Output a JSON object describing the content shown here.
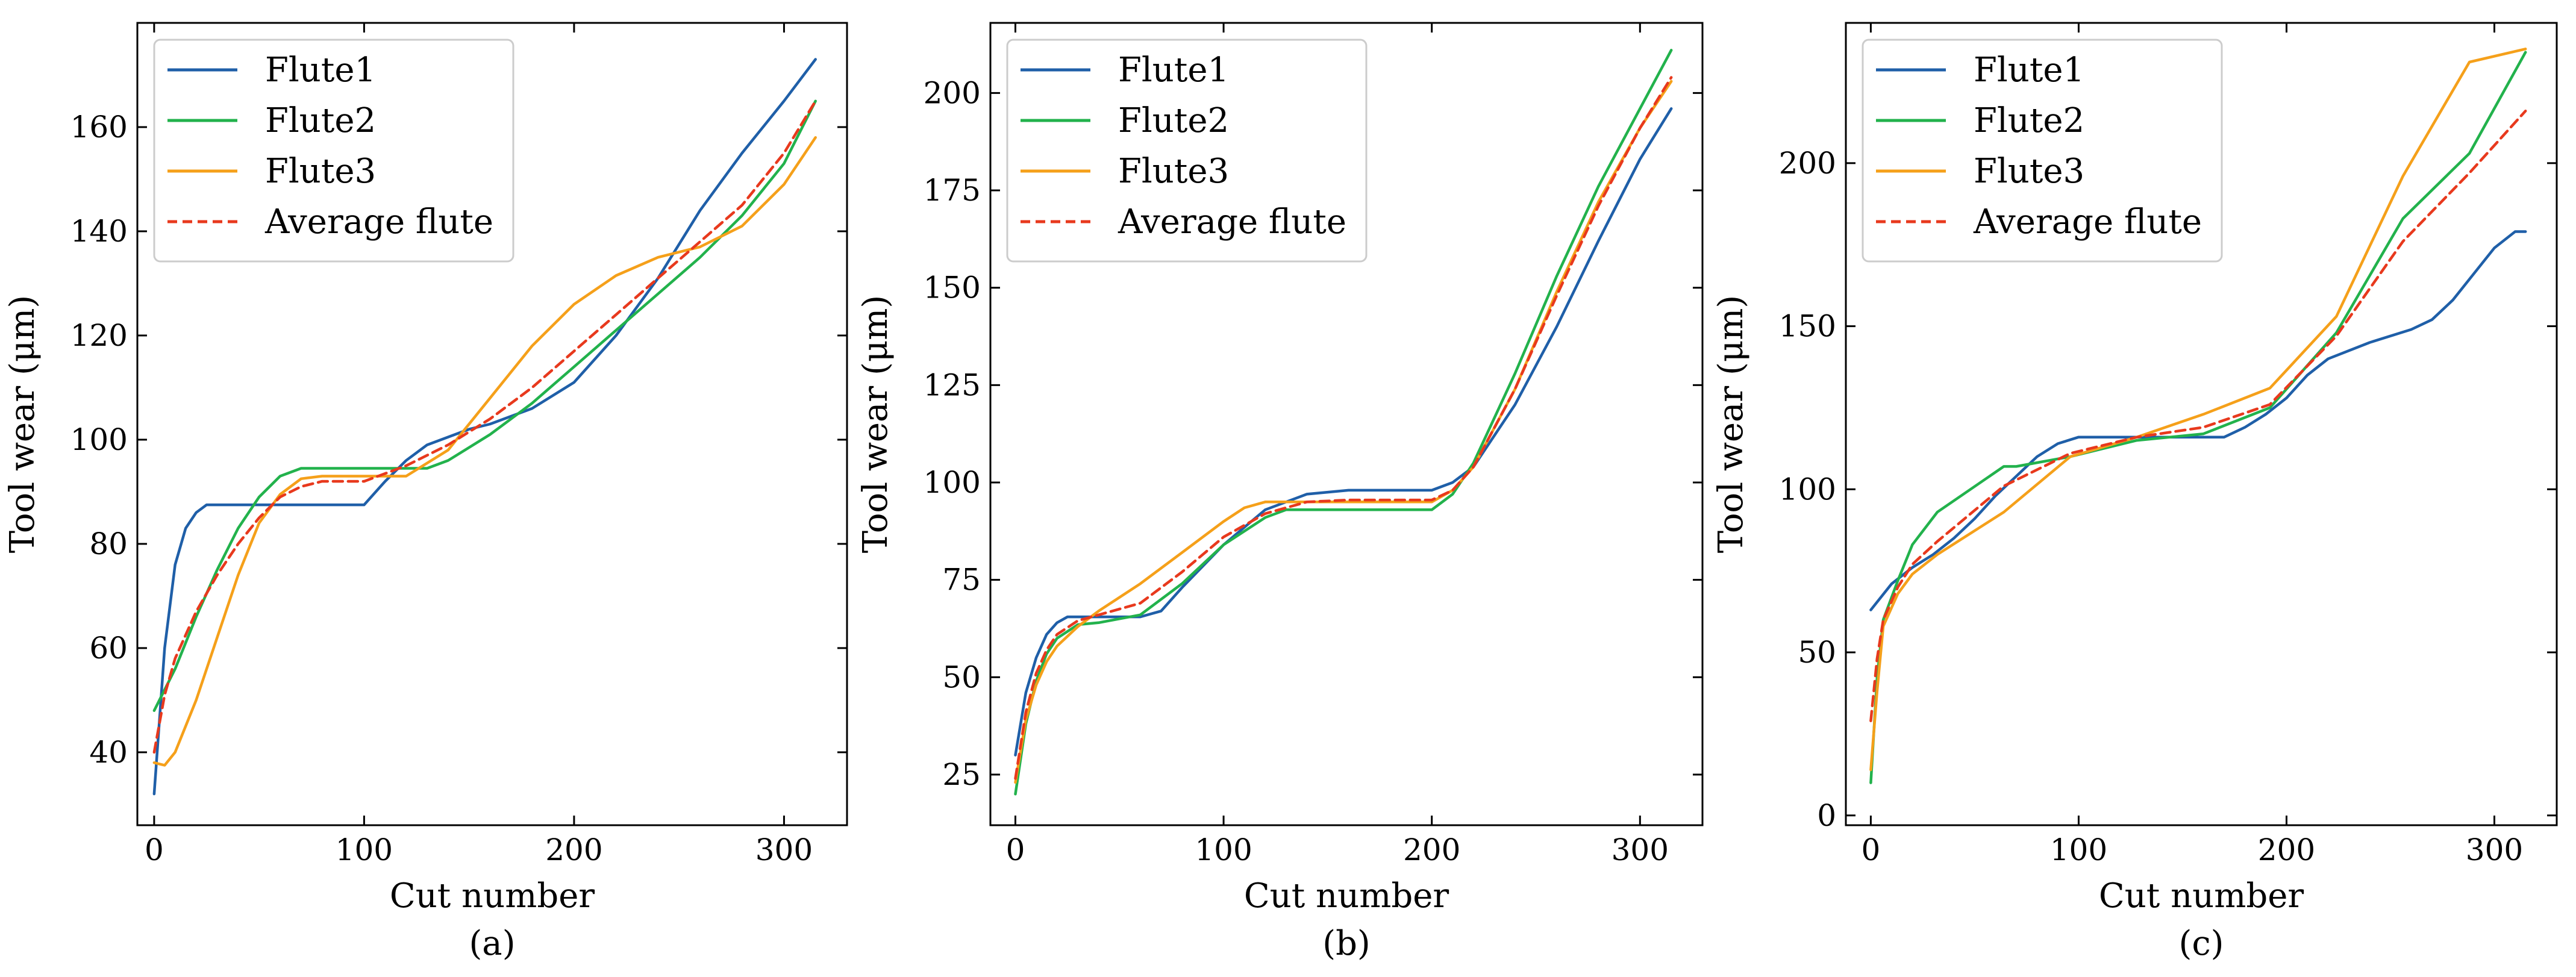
{
  "colors": {
    "flute1": "#1f5fa8",
    "flute2": "#22b24c",
    "flute3": "#f5a01a",
    "average": "#e8391d"
  },
  "chart_data": [
    {
      "type": "line",
      "caption": "(a)",
      "xlabel": "Cut number",
      "ylabel": "Tool wear (μm)",
      "xlim": [
        -8,
        330
      ],
      "ylim": [
        26,
        180
      ],
      "xticks": [
        0,
        100,
        200,
        300
      ],
      "xtick_labels": [
        "0",
        "100",
        "200",
        "300"
      ],
      "yticks": [
        40,
        60,
        80,
        100,
        120,
        140,
        160
      ],
      "ytick_labels": [
        "40",
        "60",
        "80",
        "100",
        "120",
        "140",
        "160"
      ],
      "legend_position": "top-left",
      "series": [
        {
          "name": "Flute1",
          "color_key": "flute1",
          "dashed": false,
          "x": [
            0,
            5,
            10,
            15,
            20,
            25,
            30,
            40,
            60,
            80,
            100,
            110,
            120,
            130,
            140,
            150,
            160,
            180,
            200,
            220,
            240,
            260,
            280,
            300,
            315
          ],
          "y": [
            32,
            60,
            76,
            83,
            86,
            87.5,
            87.5,
            87.5,
            87.5,
            87.5,
            87.5,
            92,
            96,
            99,
            100.5,
            102,
            103,
            106,
            111,
            120,
            131,
            144,
            155,
            165,
            173
          ]
        },
        {
          "name": "Flute2",
          "color_key": "flute2",
          "dashed": false,
          "x": [
            0,
            10,
            20,
            30,
            40,
            50,
            60,
            70,
            80,
            100,
            120,
            130,
            140,
            160,
            180,
            200,
            220,
            240,
            260,
            280,
            300,
            315
          ],
          "y": [
            48,
            56,
            66,
            75,
            83,
            89,
            93,
            94.5,
            94.5,
            94.5,
            94.5,
            94.5,
            96,
            101,
            107,
            114,
            121,
            128,
            135,
            143,
            153,
            165
          ]
        },
        {
          "name": "Flute3",
          "color_key": "flute3",
          "dashed": false,
          "x": [
            0,
            5,
            10,
            20,
            30,
            40,
            50,
            60,
            70,
            80,
            100,
            120,
            140,
            160,
            180,
            200,
            220,
            240,
            260,
            280,
            300,
            315
          ],
          "y": [
            38,
            37.5,
            40,
            50,
            62,
            74,
            84,
            89.5,
            92.5,
            93,
            93,
            93,
            98,
            108,
            118,
            126,
            131.5,
            135,
            137,
            141,
            149,
            158
          ]
        },
        {
          "name": "Average flute",
          "color_key": "average",
          "dashed": true,
          "x": [
            0,
            5,
            10,
            20,
            30,
            40,
            50,
            60,
            70,
            80,
            100,
            120,
            140,
            160,
            180,
            200,
            220,
            240,
            260,
            280,
            300,
            315
          ],
          "y": [
            40,
            51,
            58,
            67,
            74,
            80,
            85,
            89,
            91,
            92,
            92,
            95,
            99,
            104,
            110,
            117,
            124,
            131,
            138,
            145,
            155,
            165
          ]
        }
      ]
    },
    {
      "type": "line",
      "caption": "(b)",
      "xlabel": "Cut number",
      "ylabel": "Tool wear (μm)",
      "xlim": [
        -12,
        330
      ],
      "ylim": [
        12,
        218
      ],
      "xticks": [
        0,
        100,
        200,
        300
      ],
      "xtick_labels": [
        "0",
        "100",
        "200",
        "300"
      ],
      "yticks": [
        25,
        50,
        75,
        100,
        125,
        150,
        175,
        200
      ],
      "ytick_labels": [
        "25",
        "50",
        "75",
        "100",
        "125",
        "150",
        "175",
        "200"
      ],
      "legend_position": "top-left",
      "series": [
        {
          "name": "Flute1",
          "color_key": "flute1",
          "dashed": false,
          "x": [
            0,
            5,
            10,
            15,
            20,
            25,
            30,
            40,
            50,
            60,
            70,
            80,
            100,
            120,
            140,
            160,
            180,
            200,
            210,
            220,
            240,
            260,
            280,
            300,
            315
          ],
          "y": [
            30,
            46,
            55,
            61,
            64,
            65.5,
            65.5,
            65.5,
            65.5,
            65.5,
            67,
            73,
            84,
            93,
            97,
            98,
            98,
            98,
            100,
            104,
            120,
            140,
            162,
            183,
            196
          ]
        },
        {
          "name": "Flute2",
          "color_key": "flute2",
          "dashed": false,
          "x": [
            0,
            5,
            10,
            15,
            20,
            30,
            40,
            60,
            80,
            100,
            120,
            130,
            140,
            160,
            180,
            200,
            210,
            220,
            240,
            260,
            280,
            300,
            315
          ],
          "y": [
            20,
            38,
            49,
            56,
            60,
            63.5,
            64,
            66,
            74,
            84,
            91,
            93,
            93,
            93,
            93,
            93,
            97,
            105,
            128,
            153,
            176,
            196,
            211
          ]
        },
        {
          "name": "Flute3",
          "color_key": "flute3",
          "dashed": false,
          "x": [
            0,
            5,
            10,
            15,
            20,
            30,
            40,
            60,
            80,
            100,
            110,
            120,
            130,
            140,
            160,
            180,
            200,
            210,
            220,
            240,
            260,
            280,
            300,
            315
          ],
          "y": [
            23,
            39,
            48,
            54,
            58,
            63,
            67,
            74,
            82,
            90,
            93.5,
            95,
            95,
            95,
            95,
            95,
            95,
            98,
            104,
            124,
            149,
            172,
            191,
            203
          ]
        },
        {
          "name": "Average flute",
          "color_key": "average",
          "dashed": true,
          "x": [
            0,
            5,
            10,
            15,
            20,
            30,
            40,
            60,
            80,
            100,
            120,
            140,
            160,
            180,
            200,
            210,
            220,
            240,
            260,
            280,
            300,
            315
          ],
          "y": [
            24,
            41,
            51,
            57,
            61,
            64.5,
            66,
            69,
            77,
            86,
            92,
            95,
            95.5,
            95.5,
            95.5,
            98,
            104,
            124,
            148,
            171,
            191,
            204
          ]
        }
      ]
    },
    {
      "type": "line",
      "caption": "(c)",
      "xlabel": "Cut number",
      "ylabel": "Tool wear (μm)",
      "xlim": [
        -12,
        330
      ],
      "ylim": [
        -3,
        243
      ],
      "xticks": [
        0,
        100,
        200,
        300
      ],
      "xtick_labels": [
        "0",
        "100",
        "200",
        "300"
      ],
      "yticks": [
        0,
        50,
        100,
        150,
        200
      ],
      "ytick_labels": [
        "0",
        "50",
        "100",
        "150",
        "200"
      ],
      "legend_position": "top-left",
      "series": [
        {
          "name": "Flute1",
          "color_key": "flute1",
          "dashed": false,
          "x": [
            0,
            10,
            20,
            30,
            40,
            50,
            60,
            70,
            80,
            90,
            100,
            120,
            140,
            160,
            170,
            180,
            190,
            200,
            210,
            220,
            240,
            260,
            270,
            280,
            290,
            300,
            310,
            315
          ],
          "y": [
            63,
            71,
            76,
            80,
            85,
            91,
            98,
            104,
            110,
            114,
            116,
            116,
            116,
            116,
            116,
            119,
            123,
            128,
            135,
            140,
            145,
            149,
            152,
            158,
            166,
            174,
            179,
            179
          ]
        },
        {
          "name": "Flute2",
          "color_key": "flute2",
          "dashed": false,
          "x": [
            0,
            3,
            6,
            13,
            20,
            32,
            64,
            70,
            96,
            128,
            160,
            192,
            224,
            256,
            288,
            315
          ],
          "y": [
            10,
            42,
            60,
            72,
            83,
            93,
            107,
            107,
            110,
            115,
            117,
            125,
            148,
            183,
            203,
            234
          ]
        },
        {
          "name": "Flute3",
          "color_key": "flute3",
          "dashed": false,
          "x": [
            0,
            3,
            6,
            13,
            20,
            32,
            64,
            96,
            128,
            160,
            192,
            224,
            256,
            288,
            315
          ],
          "y": [
            14,
            38,
            58,
            68,
            74,
            80,
            93,
            110,
            116,
            123,
            131,
            153,
            196,
            231,
            235
          ]
        },
        {
          "name": "Average flute",
          "color_key": "average",
          "dashed": true,
          "x": [
            0,
            3,
            6,
            13,
            20,
            32,
            64,
            96,
            128,
            160,
            192,
            224,
            256,
            288,
            315
          ],
          "y": [
            29,
            48,
            60,
            70,
            77,
            84,
            101,
            111,
            116,
            119,
            126,
            147,
            176,
            197,
            216
          ]
        }
      ]
    }
  ]
}
